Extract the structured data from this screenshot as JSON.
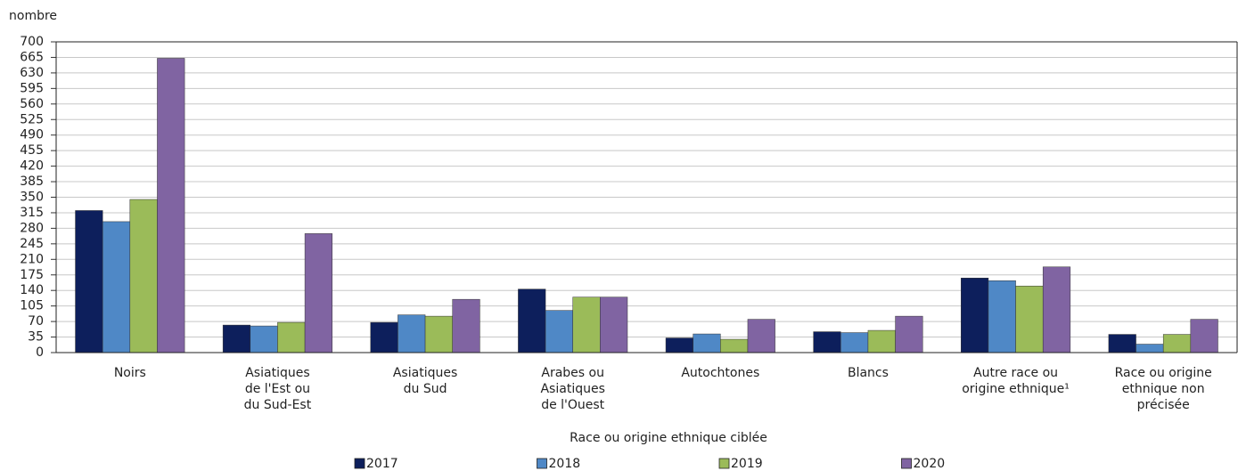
{
  "chart_data": {
    "type": "bar",
    "y_axis_label": "nombre",
    "x_axis_label": "Race ou origine ethnique ciblée",
    "categories": [
      "Noirs",
      "Asiatiques\nde l'Est ou\ndu Sud-Est",
      "Asiatiques\ndu Sud",
      "Arabes ou\nAsiatiques\nde l'Ouest",
      "Autochtones",
      "Blancs",
      "Autre race ou\norigine ethnique¹",
      "Race ou origine\nethnique non\nprécisée"
    ],
    "series": [
      {
        "name": "2017",
        "color": "#0d1f5c",
        "values": [
          320,
          62,
          68,
          143,
          33,
          47,
          168,
          41
        ]
      },
      {
        "name": "2018",
        "color": "#4f88c6",
        "values": [
          295,
          60,
          85,
          95,
          42,
          45,
          162,
          19
        ]
      },
      {
        "name": "2019",
        "color": "#9bbb59",
        "values": [
          345,
          68,
          82,
          125,
          30,
          50,
          150,
          41
        ]
      },
      {
        "name": "2020",
        "color": "#8064a2",
        "values": [
          663,
          268,
          120,
          125,
          75,
          82,
          193,
          75
        ]
      }
    ],
    "ylim": [
      0,
      700
    ],
    "yticks": [
      0,
      35,
      70,
      105,
      140,
      175,
      210,
      245,
      280,
      315,
      350,
      385,
      420,
      455,
      490,
      525,
      560,
      595,
      630,
      665,
      700
    ],
    "grid": true
  }
}
